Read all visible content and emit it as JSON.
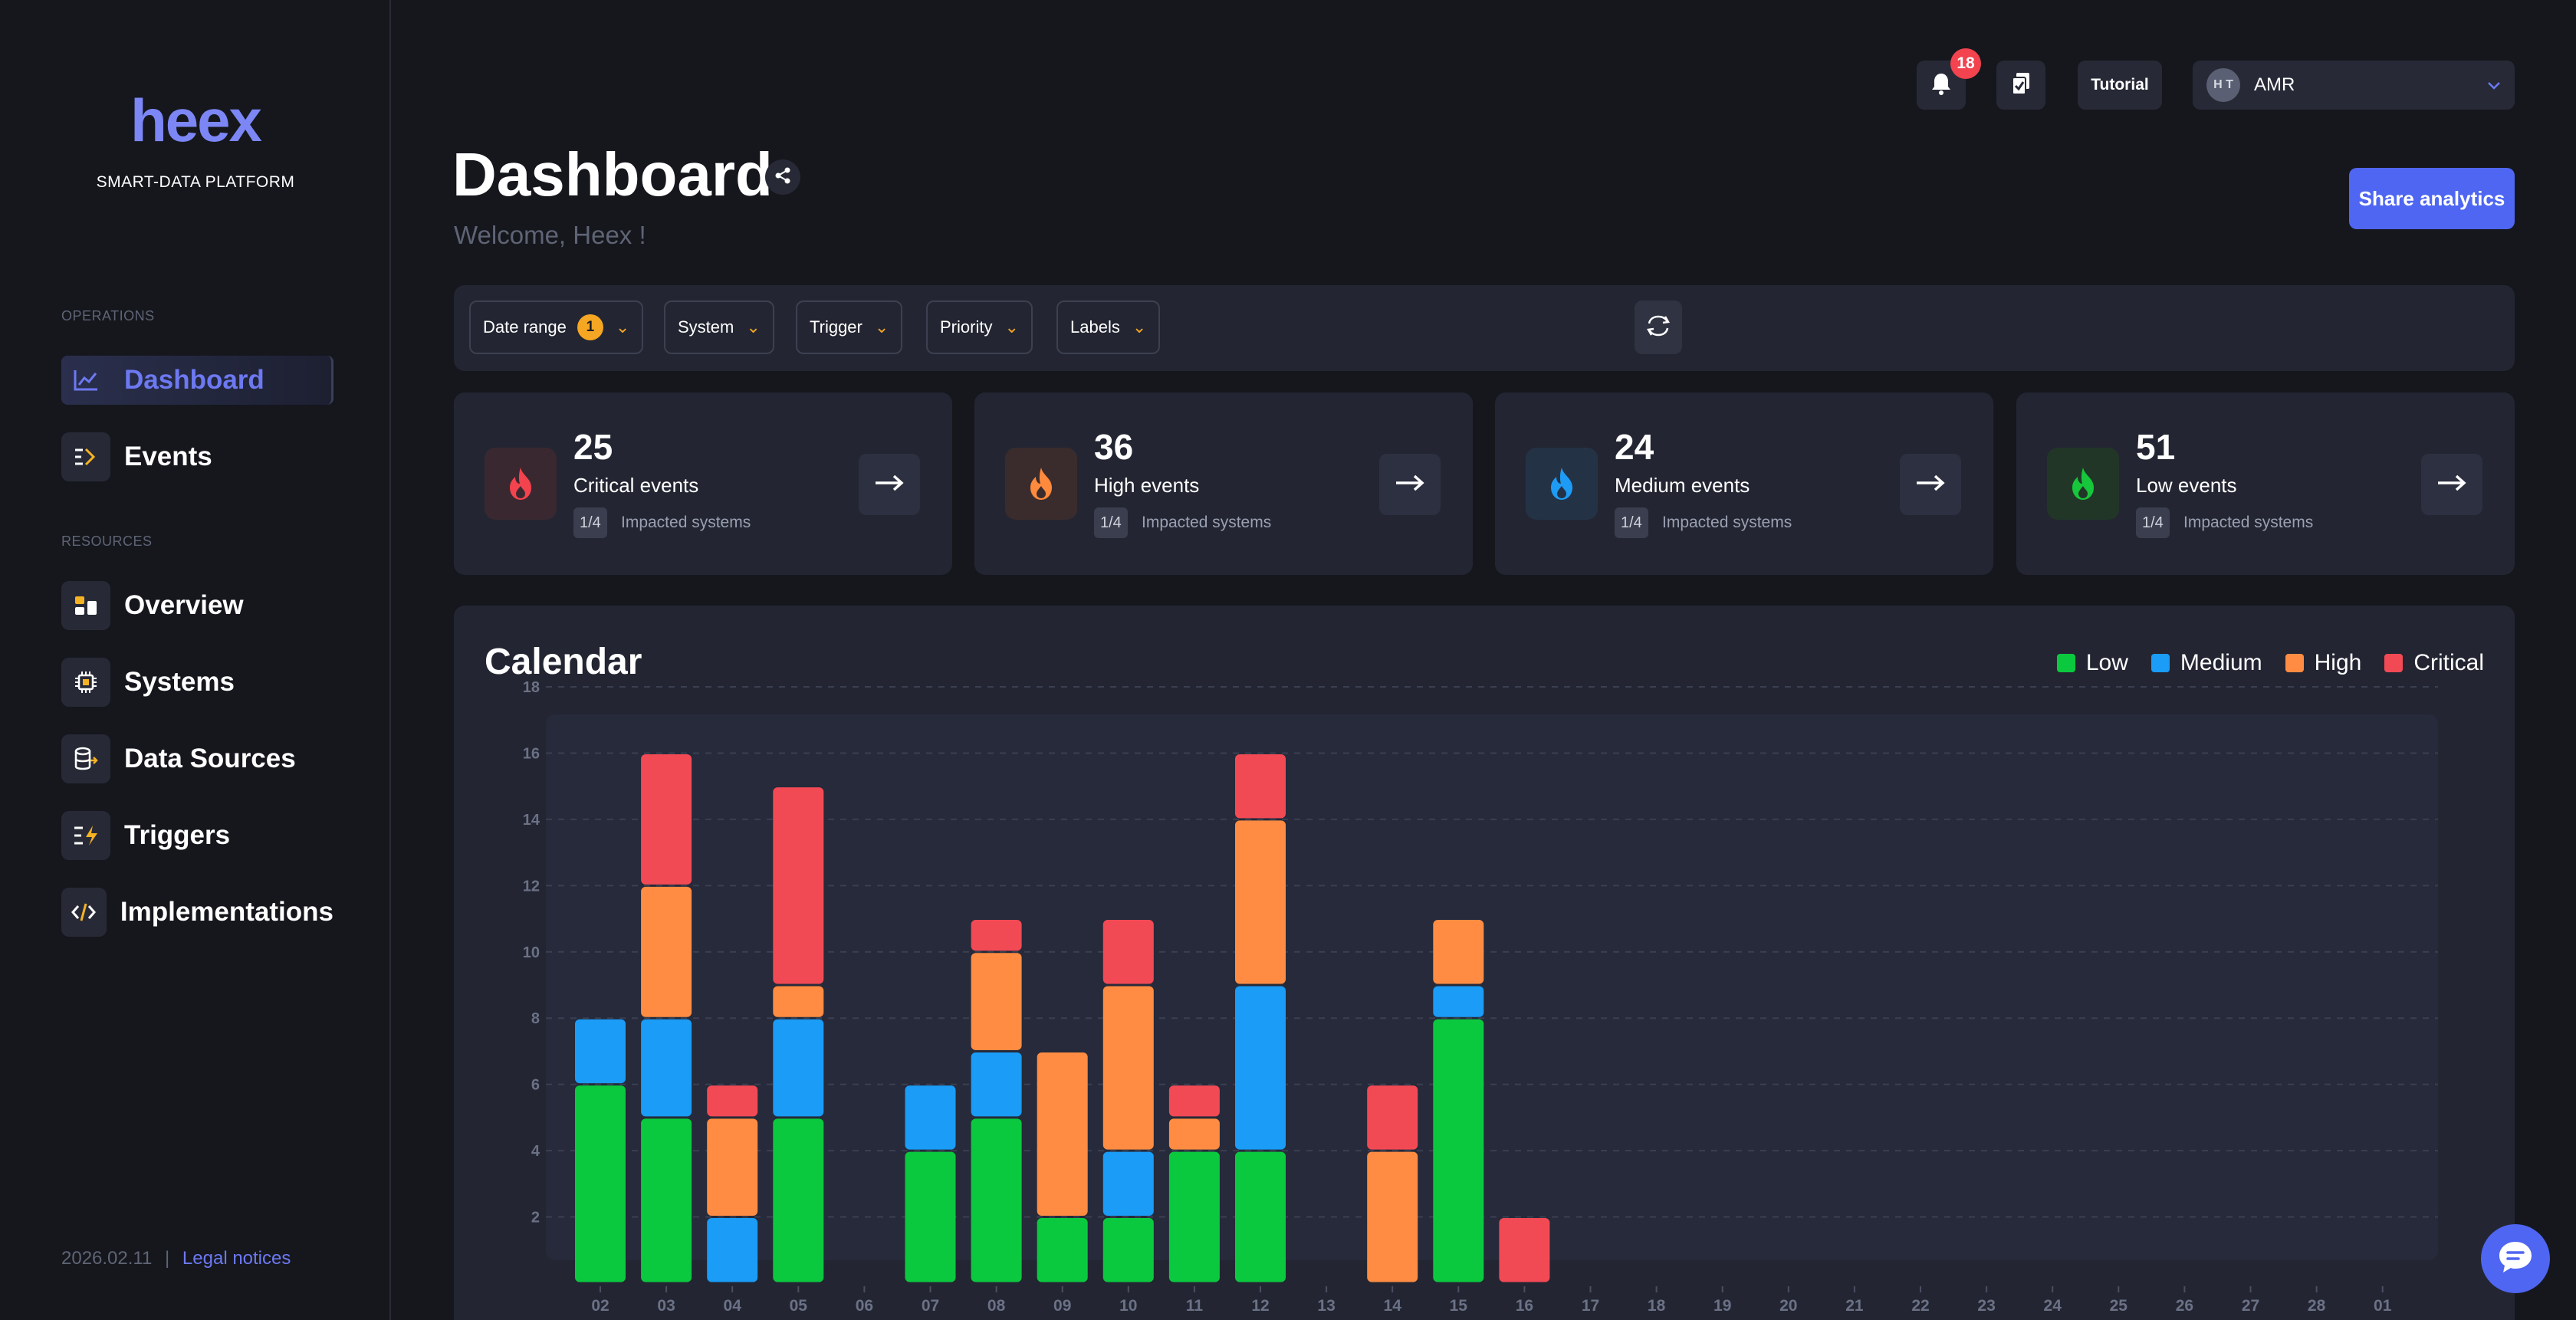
{
  "app": {
    "logo": "heex",
    "subtitle": "SMART-DATA PLATFORM"
  },
  "sidebar": {
    "sections": [
      {
        "title": "OPERATIONS"
      },
      {
        "title": "RESOURCES"
      }
    ],
    "items": [
      {
        "label": "Dashboard",
        "icon": "chart-line-icon",
        "active": true
      },
      {
        "label": "Events",
        "icon": "events-icon"
      },
      {
        "label": "Overview",
        "icon": "overview-icon"
      },
      {
        "label": "Systems",
        "icon": "chip-icon"
      },
      {
        "label": "Data Sources",
        "icon": "database-icon"
      },
      {
        "label": "Triggers",
        "icon": "trigger-icon"
      },
      {
        "label": "Implementations",
        "icon": "code-icon"
      }
    ],
    "footer": {
      "date": "2026.02.11",
      "separator": "|",
      "legal": "Legal notices"
    }
  },
  "header": {
    "notifications_count": "18",
    "tutorial": "Tutorial",
    "user_initials": "H T",
    "user_name": "AMR"
  },
  "page": {
    "title": "Dashboard",
    "welcome": "Welcome, Heex !",
    "share_analytics": "Share analytics"
  },
  "filters": [
    {
      "label": "Date range",
      "badge": "1"
    },
    {
      "label": "System"
    },
    {
      "label": "Trigger"
    },
    {
      "label": "Priority"
    },
    {
      "label": "Labels"
    }
  ],
  "stats": [
    {
      "count": "25",
      "label": "Critical events",
      "fraction": "1/4",
      "impacted": "Impacted systems",
      "color": "#f2434e",
      "bg": "#3a2830"
    },
    {
      "count": "36",
      "label": "High events",
      "fraction": "1/4",
      "impacted": "Impacted systems",
      "color": "#ff8a3d",
      "bg": "#3a2c2c"
    },
    {
      "count": "24",
      "label": "Medium events",
      "fraction": "1/4",
      "impacted": "Impacted systems",
      "color": "#1e9bf5",
      "bg": "#243246"
    },
    {
      "count": "51",
      "label": "Low events",
      "fraction": "1/4",
      "impacted": "Impacted systems",
      "color": "#16c63b",
      "bg": "#223628"
    }
  ],
  "calendar": {
    "title": "Calendar",
    "legend": [
      {
        "name": "Low",
        "color": "#0bc93f"
      },
      {
        "name": "Medium",
        "color": "#1a9cf7"
      },
      {
        "name": "High",
        "color": "#ff8c42"
      },
      {
        "name": "Critical",
        "color": "#f24a55"
      }
    ]
  },
  "chart_data": {
    "type": "bar",
    "stacked": true,
    "title": "Calendar",
    "categories": [
      "02",
      "03",
      "04",
      "05",
      "06",
      "07",
      "08",
      "09",
      "10",
      "11",
      "12",
      "13",
      "14",
      "15",
      "16",
      "17",
      "18",
      "19",
      "20",
      "21",
      "22",
      "23",
      "24",
      "25",
      "26",
      "27",
      "28",
      "01"
    ],
    "series": [
      {
        "name": "Low",
        "color": "#0bc93f",
        "values": [
          6,
          5,
          0,
          5,
          0,
          4,
          5,
          2,
          2,
          4,
          4,
          0,
          0,
          8,
          0,
          0,
          0,
          0,
          0,
          0,
          0,
          0,
          0,
          0,
          0,
          0,
          0,
          0
        ]
      },
      {
        "name": "Medium",
        "color": "#1a9cf7",
        "values": [
          2,
          3,
          2,
          3,
          0,
          2,
          2,
          0,
          2,
          0,
          5,
          0,
          0,
          1,
          0,
          0,
          0,
          0,
          0,
          0,
          0,
          0,
          0,
          0,
          0,
          0,
          0,
          0
        ]
      },
      {
        "name": "High",
        "color": "#ff8c42",
        "values": [
          0,
          4,
          3,
          1,
          0,
          0,
          3,
          5,
          5,
          1,
          5,
          0,
          4,
          2,
          0,
          0,
          0,
          0,
          0,
          0,
          0,
          0,
          0,
          0,
          0,
          0,
          0,
          0
        ]
      },
      {
        "name": "Critical",
        "color": "#f24a55",
        "values": [
          0,
          4,
          1,
          6,
          0,
          0,
          1,
          0,
          2,
          1,
          2,
          0,
          2,
          0,
          2,
          0,
          0,
          0,
          0,
          0,
          0,
          0,
          0,
          0,
          0,
          0,
          0,
          0
        ]
      }
    ],
    "yticks": [
      2,
      4,
      6,
      8,
      10,
      12,
      14,
      16,
      18
    ],
    "ylim": [
      0,
      18
    ]
  }
}
